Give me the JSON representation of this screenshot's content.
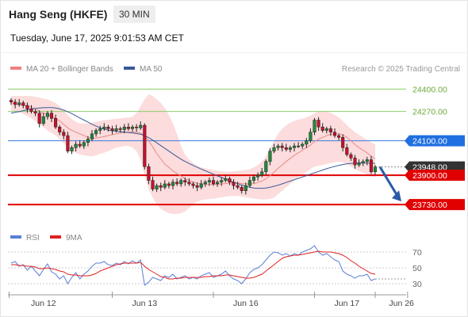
{
  "header": {
    "title": "Hang Seng (HKFE)",
    "timeframe": "30 MIN",
    "datetime": "Tuesday, June 17, 2025 9:01:53 AM CET"
  },
  "price_legend": [
    {
      "label": "MA 20 + Bollinger Bands",
      "color": "#f08080"
    },
    {
      "label": "MA 50",
      "color": "#3a5a98"
    }
  ],
  "copyright": "Research © 2025 Trading Central",
  "rsi_legend": [
    {
      "label": "RSI",
      "color": "#5b7fd6"
    },
    {
      "label": "9MA",
      "color": "#e02020"
    }
  ],
  "chart_data": [
    {
      "type": "candlestick",
      "x_labels": [
        "Jun 12",
        "Jun 13",
        "Jun 16",
        "Jun 17",
        "Jun 26"
      ],
      "ylim": [
        23620,
        24480
      ],
      "price_levels": [
        {
          "value": 24400,
          "label": "24400.00",
          "style": "resistance",
          "color": "#8ccf6a"
        },
        {
          "value": 24270,
          "label": "24270.00",
          "style": "resistance",
          "color": "#8ccf6a"
        },
        {
          "value": 24100,
          "label": "24100.00",
          "style": "pivot",
          "color": "#3b7be0"
        },
        {
          "value": 23948,
          "label": "23948.00",
          "style": "last",
          "color": "#333333"
        },
        {
          "value": 23900,
          "label": "23900.00",
          "style": "support",
          "color": "#e00000"
        },
        {
          "value": 23730,
          "label": "23730.00",
          "style": "support",
          "color": "#e00000"
        }
      ],
      "close": [
        24325,
        24310,
        24320,
        24305,
        24285,
        24270,
        24260,
        24200,
        24240,
        24260,
        24230,
        24180,
        24150,
        24130,
        24040,
        24060,
        24080,
        24070,
        24090,
        24110,
        24140,
        24160,
        24170,
        24180,
        24170,
        24160,
        24170,
        24165,
        24180,
        24170,
        24180,
        24175,
        24190,
        23950,
        23870,
        23820,
        23840,
        23830,
        23850,
        23840,
        23860,
        23850,
        23870,
        23860,
        23850,
        23840,
        23830,
        23850,
        23860,
        23870,
        23850,
        23860,
        23870,
        23880,
        23860,
        23840,
        23830,
        23810,
        23840,
        23870,
        23890,
        23900,
        23920,
        23980,
        24040,
        24060,
        24070,
        24060,
        24050,
        24060,
        24070,
        24070,
        24080,
        24100,
        24150,
        24220,
        24180,
        24160,
        24170,
        24150,
        24130,
        24120,
        24060,
        24020,
        24000,
        23960,
        23970,
        23980,
        23990,
        23920,
        23948
      ],
      "ma20": [
        24320,
        24315,
        24310,
        24305,
        24300,
        24295,
        24285,
        24270,
        24260,
        24250,
        24240,
        24230,
        24215,
        24195,
        24175,
        24160,
        24150,
        24140,
        24130,
        24120,
        24115,
        24115,
        24120,
        24125,
        24130,
        24135,
        24140,
        24145,
        24150,
        24150,
        24150,
        24150,
        24145,
        24130,
        24100,
        24065,
        24025,
        23995,
        23965,
        23945,
        23925,
        23910,
        23895,
        23880,
        23870,
        23860,
        23855,
        23850,
        23848,
        23847,
        23847,
        23848,
        23850,
        23852,
        23855,
        23856,
        23855,
        23852,
        23850,
        23850,
        23852,
        23858,
        23866,
        23880,
        23898,
        23918,
        23940,
        23960,
        23980,
        23998,
        24015,
        24030,
        24045,
        24060,
        24075,
        24095,
        24110,
        24120,
        24130,
        24138,
        24140,
        24140,
        24135,
        24120,
        24100,
        24078,
        24060,
        24045,
        24030,
        24010,
        23995
      ],
      "bb_upper": [
        24360,
        24360,
        24360,
        24360,
        24360,
        24360,
        24355,
        24350,
        24345,
        24340,
        24330,
        24320,
        24300,
        24275,
        24250,
        24225,
        24210,
        24200,
        24200,
        24200,
        24205,
        24210,
        24215,
        24220,
        24222,
        24225,
        24227,
        24230,
        24232,
        24234,
        24240,
        24260,
        24300,
        24340,
        24370,
        24360,
        24340,
        24320,
        24290,
        24250,
        24200,
        24140,
        24070,
        24020,
        23990,
        23970,
        23955,
        23945,
        23940,
        23935,
        23930,
        23925,
        23922,
        23920,
        23920,
        23922,
        23925,
        23928,
        23930,
        23935,
        23945,
        23960,
        23980,
        24010,
        24050,
        24100,
        24140,
        24170,
        24190,
        24205,
        24215,
        24222,
        24228,
        24235,
        24245,
        24260,
        24270,
        24272,
        24270,
        24262,
        24250,
        24235,
        24215,
        24190,
        24170,
        24150,
        24135,
        24120,
        24105,
        24090,
        24080
      ],
      "bb_lower": [
        24270,
        24270,
        24265,
        24255,
        24245,
        24230,
        24215,
        24195,
        24180,
        24160,
        24145,
        24130,
        24110,
        24085,
        24060,
        24040,
        24030,
        24020,
        24015,
        24012,
        24010,
        24015,
        24025,
        24030,
        24040,
        24050,
        24060,
        24065,
        24070,
        24070,
        24060,
        24040,
        23990,
        23900,
        23820,
        23770,
        23730,
        23705,
        23690,
        23680,
        23675,
        23675,
        23680,
        23690,
        23710,
        23730,
        23745,
        23755,
        23760,
        23762,
        23765,
        23768,
        23772,
        23775,
        23778,
        23780,
        23780,
        23776,
        23772,
        23768,
        23765,
        23762,
        23760,
        23760,
        23762,
        23770,
        23790,
        23810,
        23830,
        23850,
        23870,
        23890,
        23905,
        23920,
        23935,
        23950,
        23955,
        23960,
        23965,
        23970,
        23975,
        23980,
        23975,
        23965,
        23950,
        23935,
        23925,
        23915,
        23905,
        23895,
        23890
      ],
      "ma50": [
        24260,
        24265,
        24270,
        24275,
        24280,
        24284,
        24288,
        24290,
        24292,
        24293,
        24293,
        24290,
        24285,
        24278,
        24268,
        24258,
        24245,
        24232,
        24220,
        24208,
        24196,
        24185,
        24175,
        24168,
        24162,
        24158,
        24155,
        24152,
        24150,
        24148,
        24145,
        24142,
        24138,
        24130,
        24118,
        24104,
        24088,
        24072,
        24056,
        24040,
        24024,
        24008,
        23993,
        23980,
        23968,
        23957,
        23946,
        23936,
        23926,
        23916,
        23906,
        23896,
        23887,
        23878,
        23869,
        23860,
        23851,
        23843,
        23836,
        23830,
        23826,
        23824,
        23824,
        23826,
        23830,
        23836,
        23842,
        23850,
        23858,
        23866,
        23874,
        23882,
        23890,
        23898,
        23906,
        23914,
        23922,
        23930,
        23938,
        23945,
        23951,
        23957,
        23962,
        23966,
        23969,
        23971,
        23972,
        23972,
        23971,
        23970,
        23969
      ]
    },
    {
      "type": "line",
      "title": "RSI",
      "ylim": [
        20,
        80
      ],
      "y_ticks": [
        70,
        50,
        30
      ],
      "series": [
        {
          "name": "RSI",
          "values": [
            56,
            58,
            52,
            54,
            47,
            52,
            46,
            40,
            48,
            55,
            45,
            42,
            36,
            40,
            30,
            38,
            44,
            36,
            42,
            46,
            52,
            56,
            56,
            58,
            54,
            53,
            56,
            54,
            58,
            55,
            59,
            56,
            60,
            28,
            32,
            38,
            36,
            34,
            40,
            38,
            42,
            36,
            38,
            40,
            36,
            38,
            36,
            40,
            42,
            44,
            38,
            40,
            42,
            46,
            40,
            36,
            34,
            30,
            36,
            44,
            48,
            50,
            54,
            60,
            66,
            70,
            69,
            66,
            68,
            65,
            68,
            66,
            70,
            72,
            74,
            78,
            70,
            66,
            68,
            64,
            60,
            58,
            46,
            42,
            40,
            37,
            40,
            40,
            42,
            34,
            36
          ]
        },
        {
          "name": "9MA",
          "values": [
            54,
            54,
            53,
            53,
            52,
            52,
            51,
            49,
            49,
            50,
            49,
            48,
            46,
            45,
            42,
            41,
            41,
            40,
            40,
            40,
            41,
            43,
            46,
            48,
            50,
            52,
            54,
            55,
            56,
            56,
            56,
            56,
            57,
            52,
            48,
            45,
            42,
            39,
            38,
            36,
            36,
            37,
            37,
            38,
            38,
            38,
            38,
            38,
            39,
            39,
            40,
            40,
            40,
            41,
            41,
            40,
            39,
            38,
            37,
            37,
            38,
            40,
            42,
            46,
            50,
            54,
            58,
            62,
            64,
            65,
            66,
            66,
            67,
            68,
            69,
            70,
            71,
            70,
            70,
            70,
            69,
            68,
            66,
            63,
            59,
            56,
            52,
            49,
            46,
            43,
            42
          ]
        }
      ]
    }
  ]
}
